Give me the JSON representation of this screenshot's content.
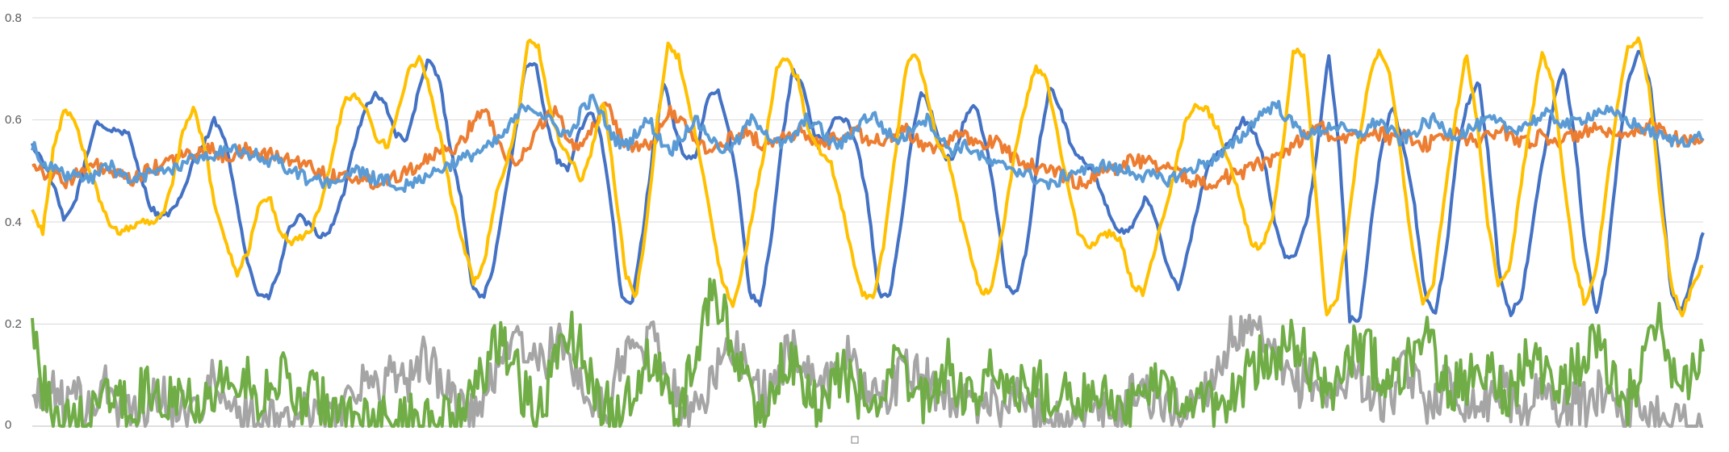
{
  "chart_data": {
    "type": "line",
    "title": "",
    "xlabel": "",
    "ylabel": "",
    "ylim": [
      0,
      0.8
    ],
    "y_ticks": [
      {
        "value": 0,
        "label": "0"
      },
      {
        "value": 0.2,
        "label": "0.2"
      },
      {
        "value": 0.4,
        "label": "0.4"
      },
      {
        "value": 0.6,
        "label": "0.6"
      },
      {
        "value": 0.8,
        "label": "0.8"
      }
    ],
    "grid": true,
    "legend": "none",
    "n_points": 800,
    "series": [
      {
        "color": "#4472C4",
        "values": [
          0.55,
          0.52,
          0.47,
          0.4,
          0.44,
          0.52,
          0.6,
          0.58,
          0.58,
          0.57,
          0.5,
          0.43,
          0.41,
          0.42,
          0.45,
          0.52,
          0.55,
          0.6,
          0.56,
          0.45,
          0.33,
          0.26,
          0.25,
          0.3,
          0.39,
          0.41,
          0.39,
          0.37,
          0.39,
          0.45,
          0.55,
          0.62,
          0.65,
          0.63,
          0.57,
          0.56,
          0.65,
          0.72,
          0.68,
          0.55,
          0.45,
          0.28,
          0.25,
          0.3,
          0.44,
          0.56,
          0.7,
          0.71,
          0.6,
          0.52,
          0.5,
          0.57,
          0.62,
          0.58,
          0.44,
          0.25,
          0.24,
          0.38,
          0.55,
          0.68,
          0.58,
          0.52,
          0.53,
          0.64,
          0.66,
          0.58,
          0.45,
          0.26,
          0.24,
          0.37,
          0.56,
          0.7,
          0.66,
          0.57,
          0.56,
          0.61,
          0.6,
          0.55,
          0.44,
          0.26,
          0.25,
          0.38,
          0.55,
          0.66,
          0.61,
          0.53,
          0.52,
          0.6,
          0.63,
          0.56,
          0.43,
          0.27,
          0.26,
          0.37,
          0.55,
          0.67,
          0.62,
          0.55,
          0.52,
          0.5,
          0.45,
          0.39,
          0.38,
          0.4,
          0.45,
          0.4,
          0.31,
          0.27,
          0.35,
          0.45,
          0.52,
          0.54,
          0.56,
          0.6,
          0.58,
          0.52,
          0.4,
          0.33,
          0.34,
          0.4,
          0.55,
          0.73,
          0.55,
          0.21,
          0.21,
          0.4,
          0.55,
          0.63,
          0.55,
          0.44,
          0.26,
          0.22,
          0.34,
          0.54,
          0.63,
          0.68,
          0.52,
          0.29,
          0.22,
          0.25,
          0.38,
          0.52,
          0.63,
          0.71,
          0.56,
          0.35,
          0.22,
          0.32,
          0.52,
          0.68,
          0.74,
          0.68,
          0.49,
          0.26,
          0.22,
          0.3,
          0.38
        ]
      },
      {
        "color": "#ED7D31",
        "values": [
          0.52,
          0.5,
          0.49,
          0.48,
          0.49,
          0.5,
          0.51,
          0.5,
          0.49,
          0.48,
          0.49,
          0.5,
          0.51,
          0.52,
          0.53,
          0.53,
          0.54,
          0.54,
          0.53,
          0.53,
          0.54,
          0.54,
          0.53,
          0.53,
          0.52,
          0.52,
          0.51,
          0.5,
          0.49,
          0.49,
          0.49,
          0.48,
          0.48,
          0.48,
          0.49,
          0.5,
          0.51,
          0.52,
          0.53,
          0.54,
          0.55,
          0.58,
          0.62,
          0.6,
          0.55,
          0.52,
          0.53,
          0.56,
          0.6,
          0.62,
          0.58,
          0.55,
          0.56,
          0.6,
          0.64,
          0.58,
          0.55,
          0.54,
          0.55,
          0.58,
          0.62,
          0.6,
          0.56,
          0.55,
          0.54,
          0.55,
          0.57,
          0.58,
          0.56,
          0.55,
          0.56,
          0.57,
          0.58,
          0.56,
          0.55,
          0.56,
          0.57,
          0.58,
          0.57,
          0.56,
          0.56,
          0.57,
          0.58,
          0.56,
          0.55,
          0.55,
          0.56,
          0.57,
          0.56,
          0.55,
          0.56,
          0.55,
          0.53,
          0.52,
          0.51,
          0.5,
          0.5,
          0.49,
          0.48,
          0.48,
          0.49,
          0.5,
          0.51,
          0.52,
          0.52,
          0.52,
          0.51,
          0.5,
          0.49,
          0.48,
          0.48,
          0.48,
          0.49,
          0.49,
          0.5,
          0.51,
          0.52,
          0.53,
          0.54,
          0.56,
          0.58,
          0.59,
          0.57,
          0.56,
          0.56,
          0.57,
          0.58,
          0.57,
          0.56,
          0.57,
          0.56,
          0.55,
          0.56,
          0.57,
          0.57,
          0.56,
          0.56,
          0.57,
          0.58,
          0.57,
          0.56,
          0.56,
          0.57,
          0.56,
          0.56,
          0.57,
          0.58,
          0.58,
          0.57,
          0.56,
          0.57,
          0.58,
          0.59,
          0.58,
          0.57,
          0.56,
          0.56,
          0.56
        ]
      },
      {
        "color": "#A5A5A5",
        "values": [
          0.06,
          0.04,
          0.09,
          0.03,
          0.07,
          0.02,
          0.05,
          0.08,
          0.03,
          0.06,
          0.01,
          0.04,
          0.07,
          0.03,
          0.05,
          0.02,
          0.06,
          0.09,
          0.04,
          0.02,
          0.03,
          0.01,
          0.0,
          0.02,
          0.01,
          0.03,
          0.02,
          0.05,
          0.01,
          0.04,
          0.07,
          0.1,
          0.06,
          0.09,
          0.12,
          0.08,
          0.11,
          0.14,
          0.1,
          0.07,
          0.05,
          0.03,
          0.02,
          0.08,
          0.14,
          0.18,
          0.15,
          0.13,
          0.12,
          0.16,
          0.15,
          0.12,
          0.06,
          0.04,
          0.02,
          0.12,
          0.16,
          0.13,
          0.17,
          0.15,
          0.09,
          0.04,
          0.02,
          0.05,
          0.1,
          0.13,
          0.16,
          0.12,
          0.08,
          0.06,
          0.09,
          0.15,
          0.14,
          0.11,
          0.08,
          0.1,
          0.14,
          0.13,
          0.09,
          0.06,
          0.05,
          0.08,
          0.12,
          0.1,
          0.09,
          0.07,
          0.06,
          0.05,
          0.04,
          0.05,
          0.06,
          0.04,
          0.05,
          0.06,
          0.03,
          0.04,
          0.02,
          0.01,
          0.0,
          0.01,
          0.02,
          0.03,
          0.01,
          0.05,
          0.08,
          0.06,
          0.03,
          0.04,
          0.02,
          0.05,
          0.07,
          0.1,
          0.14,
          0.19,
          0.17,
          0.18,
          0.15,
          0.12,
          0.09,
          0.08,
          0.1,
          0.07,
          0.05,
          0.08,
          0.12,
          0.09,
          0.06,
          0.04,
          0.07,
          0.11,
          0.08,
          0.05,
          0.06,
          0.09,
          0.06,
          0.05,
          0.04,
          0.06,
          0.08,
          0.05,
          0.03,
          0.06,
          0.07,
          0.04,
          0.03,
          0.05,
          0.04,
          0.06,
          0.08,
          0.05,
          0.03,
          0.04,
          0.02,
          0.03,
          0.02,
          0.01,
          0.01,
          0.0
        ]
      },
      {
        "color": "#FFC000",
        "values": [
          0.42,
          0.38,
          0.55,
          0.62,
          0.6,
          0.52,
          0.46,
          0.4,
          0.38,
          0.39,
          0.4,
          0.4,
          0.41,
          0.48,
          0.58,
          0.62,
          0.55,
          0.42,
          0.36,
          0.3,
          0.34,
          0.43,
          0.45,
          0.38,
          0.36,
          0.37,
          0.39,
          0.45,
          0.55,
          0.64,
          0.65,
          0.62,
          0.56,
          0.55,
          0.62,
          0.7,
          0.72,
          0.65,
          0.55,
          0.44,
          0.35,
          0.28,
          0.33,
          0.45,
          0.52,
          0.6,
          0.76,
          0.74,
          0.62,
          0.55,
          0.52,
          0.48,
          0.55,
          0.64,
          0.48,
          0.3,
          0.25,
          0.4,
          0.6,
          0.75,
          0.72,
          0.62,
          0.52,
          0.4,
          0.28,
          0.24,
          0.32,
          0.44,
          0.55,
          0.7,
          0.72,
          0.68,
          0.58,
          0.54,
          0.52,
          0.44,
          0.34,
          0.26,
          0.25,
          0.36,
          0.52,
          0.7,
          0.73,
          0.65,
          0.55,
          0.52,
          0.42,
          0.34,
          0.26,
          0.27,
          0.38,
          0.52,
          0.62,
          0.7,
          0.69,
          0.58,
          0.48,
          0.38,
          0.35,
          0.37,
          0.38,
          0.36,
          0.28,
          0.26,
          0.33,
          0.42,
          0.5,
          0.6,
          0.63,
          0.62,
          0.58,
          0.52,
          0.45,
          0.36,
          0.35,
          0.4,
          0.55,
          0.74,
          0.72,
          0.48,
          0.22,
          0.24,
          0.38,
          0.55,
          0.68,
          0.74,
          0.68,
          0.52,
          0.35,
          0.24,
          0.28,
          0.45,
          0.6,
          0.73,
          0.6,
          0.4,
          0.28,
          0.3,
          0.46,
          0.6,
          0.73,
          0.68,
          0.5,
          0.33,
          0.24,
          0.3,
          0.46,
          0.62,
          0.74,
          0.76,
          0.66,
          0.45,
          0.28,
          0.22,
          0.27,
          0.32
        ]
      },
      {
        "color": "#5B9BD5",
        "values": [
          0.55,
          0.52,
          0.5,
          0.49,
          0.49,
          0.48,
          0.5,
          0.51,
          0.49,
          0.48,
          0.49,
          0.5,
          0.5,
          0.51,
          0.52,
          0.53,
          0.53,
          0.54,
          0.54,
          0.53,
          0.53,
          0.52,
          0.52,
          0.5,
          0.49,
          0.48,
          0.48,
          0.48,
          0.49,
          0.5,
          0.49,
          0.48,
          0.48,
          0.47,
          0.48,
          0.49,
          0.5,
          0.51,
          0.52,
          0.53,
          0.54,
          0.55,
          0.57,
          0.6,
          0.63,
          0.62,
          0.6,
          0.58,
          0.57,
          0.62,
          0.64,
          0.6,
          0.56,
          0.55,
          0.58,
          0.6,
          0.56,
          0.54,
          0.57,
          0.6,
          0.58,
          0.55,
          0.54,
          0.56,
          0.6,
          0.59,
          0.56,
          0.55,
          0.57,
          0.6,
          0.59,
          0.56,
          0.55,
          0.57,
          0.6,
          0.61,
          0.58,
          0.56,
          0.57,
          0.6,
          0.6,
          0.56,
          0.54,
          0.55,
          0.54,
          0.52,
          0.51,
          0.51,
          0.5,
          0.49,
          0.48,
          0.47,
          0.49,
          0.5,
          0.5,
          0.51,
          0.51,
          0.5,
          0.5,
          0.49,
          0.49,
          0.48,
          0.49,
          0.5,
          0.51,
          0.52,
          0.53,
          0.55,
          0.57,
          0.6,
          0.62,
          0.63,
          0.6,
          0.58,
          0.57,
          0.58,
          0.59,
          0.58,
          0.57,
          0.58,
          0.6,
          0.58,
          0.56,
          0.57,
          0.59,
          0.6,
          0.58,
          0.57,
          0.58,
          0.59,
          0.6,
          0.59,
          0.58,
          0.59,
          0.6,
          0.61,
          0.6,
          0.59,
          0.6,
          0.61,
          0.62,
          0.61,
          0.6,
          0.59,
          0.58,
          0.57,
          0.56,
          0.56,
          0.56,
          0.57
        ]
      },
      {
        "color": "#70AD47",
        "values": [
          0.22,
          0.08,
          0.02,
          0.0,
          0.01,
          0.0,
          0.04,
          0.07,
          0.05,
          0.02,
          0.06,
          0.08,
          0.05,
          0.07,
          0.09,
          0.06,
          0.05,
          0.08,
          0.1,
          0.07,
          0.09,
          0.06,
          0.08,
          0.1,
          0.07,
          0.05,
          0.06,
          0.04,
          0.03,
          0.02,
          0.01,
          0.0,
          0.01,
          0.0,
          0.0,
          0.01,
          0.02,
          0.0,
          0.01,
          0.02,
          0.03,
          0.06,
          0.12,
          0.18,
          0.15,
          0.1,
          0.05,
          0.02,
          0.08,
          0.16,
          0.19,
          0.14,
          0.09,
          0.04,
          0.02,
          0.03,
          0.08,
          0.14,
          0.12,
          0.06,
          0.03,
          0.1,
          0.18,
          0.26,
          0.22,
          0.16,
          0.1,
          0.04,
          0.02,
          0.08,
          0.14,
          0.12,
          0.06,
          0.03,
          0.07,
          0.11,
          0.09,
          0.05,
          0.03,
          0.08,
          0.12,
          0.1,
          0.06,
          0.04,
          0.09,
          0.12,
          0.08,
          0.05,
          0.07,
          0.1,
          0.08,
          0.05,
          0.07,
          0.09,
          0.06,
          0.08,
          0.05,
          0.07,
          0.06,
          0.04,
          0.06,
          0.05,
          0.03,
          0.07,
          0.09,
          0.06,
          0.05,
          0.04,
          0.06,
          0.05,
          0.03,
          0.06,
          0.08,
          0.11,
          0.14,
          0.12,
          0.16,
          0.18,
          0.14,
          0.1,
          0.06,
          0.09,
          0.13,
          0.16,
          0.14,
          0.1,
          0.08,
          0.12,
          0.15,
          0.18,
          0.14,
          0.1,
          0.07,
          0.09,
          0.13,
          0.12,
          0.08,
          0.06,
          0.1,
          0.14,
          0.12,
          0.09,
          0.07,
          0.11,
          0.15,
          0.18,
          0.12,
          0.07,
          0.05,
          0.09,
          0.14,
          0.2,
          0.12,
          0.06,
          0.1,
          0.12
        ]
      }
    ]
  }
}
